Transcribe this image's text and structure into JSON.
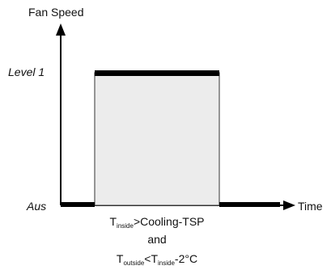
{
  "diagram": {
    "y_axis_label": "Fan Speed",
    "x_axis_label": "Time",
    "level_high_label": "Level 1",
    "level_low_label": "Aus",
    "condition": {
      "line1": {
        "T": "T",
        "sub": "inside",
        "rest": ">Cooling-TSP"
      },
      "line2": "and",
      "line3": {
        "T1": "T",
        "sub1": "outside",
        "lt": "<",
        "T2": "T",
        "sub2": "inside",
        "rest": "-2°C"
      }
    },
    "colors": {
      "line": "#000000",
      "box_fill": "#ececec",
      "box_border": "#555555"
    }
  }
}
